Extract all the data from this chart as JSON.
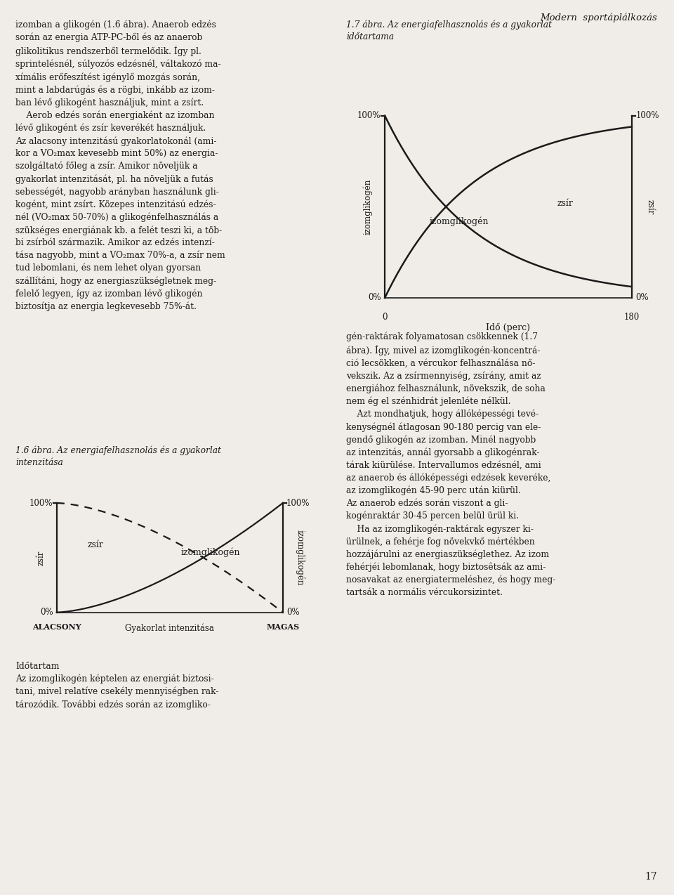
{
  "page_title": "Modern  sportáplálkozás",
  "page_number": "17",
  "background_color": "#f0ede8",
  "line_color": "#1a1a1a",
  "text_color": "#1a1a1a",
  "left_col_text1": "izomban a glikogén (1.6 ábra). Anaerob edzés\nsorán az energia ATP-PC-ből és az anaerob\nglikolitikus rendszerből termelődik. Így pl.\nsprintelésnél, súlyozós edzésnél, váltakozó ma-\nxímális erőfeszítést igénylő mozgás során,\nmint a labdarúgás és a rögbi, inkább az izom-\nban lévő glikogént használjuk, mint a zsírt.\n    Aerob edzés során energiaként az izomban\nlévő glikogént és zsír keverékét használjuk.\nAz alacsony intenzitású gyakorlatokonál (ami-\nkor a VO₂max kevesebb mint 50%) az energia-\nszolgáltató főleg a zsír. Amikor növeljük a\ngyakorlat intenzitását, pl. ha növeljük a futás\nsebességét, nagyobb arányban használunk gli-\nkogént, mint zsírt. Közepes intenzitású edzés-\nnél (VO₂max 50-70%) a glikogénfelhasználás a\nszükséges energiának kb. a felét teszi ki, a töb-\nbi zsírból származik. Amikor az edzés intenzí-\ntása nagyobb, mint a VO₂max 70%-a, a zsír nem\ntud lebomlani, és nem lehet olyan gyorsan\nszállítáni, hogy az energiaszükségletnek meg-\nfelelő legyen, így az izomban lévő glikogén\nbiztosítja az energia legkevesebb 75%-át.",
  "caption1": "1.6 ábra. Az energiafelhasznolás és a gyakorlat\nintenzitása",
  "caption1_bottom": "Időtartam\nAz izomglikogén képtelen az energiát biztosi-\ntani, mivel relatíve csekély mennyiségben rak-\ntározódik. További edzés során az izomgliko-",
  "caption2": "1.7 ábra. Az energiafelhasznolás és a gyakorlat\nidőtartama",
  "right_col_text": "gén-raktárak folyamatosan csökkennek (1.7\nábra). Így, mivel az izomglikogén-koncentrá-\nció lecsökken, a vércukor felhasználása nő-\nvekszik. Az a zsírmennyiség, zsírány, amit az\nenergiához felhasználunk, növekszik, de soha\nnem ég el szénhidrát jelenléte nélkül.\n    Azt mondhatjuk, hogy állóképességi tevé-\nkenységnél átlagosan 90-180 percig van ele-\ngendő glikogén az izomban. Minél nagyobb\naz intenzitás, annál gyorsabb a glikogénrak-\ntárak kiürülése. Intervallumos edzésnél, ami\naz anaerob és állóképességi edzések keveréke,\naz izomglikogén 45-90 perc után kiürül.\nAz anaerob edzés során viszont a gli-\nkogénraktár 30-45 percen belül ürül ki.\n    Ha az izomglikogén-raktárak egyszer ki-\nürülnek, a fehérje fog növekvkő mértékben\nhozzájárulni az energiaszükséglethez. Az izom\nfehérjéi lebomlanak, hogy biztosêtsák az ami-\nnosavakat az energiatermeléshez, és hogy meg-\ntartsák a normális vércukorsizintet.",
  "fig1_label_zsir": "zsír",
  "fig1_label_izomglikogen": "izomglikogén",
  "fig1_xlabel": "Gyakorlat intenzitása",
  "fig1_xlabel_left": "ALACSONY",
  "fig1_xlabel_right": "MAGAS",
  "fig1_ylabel_left": "zsír",
  "fig1_ylabel_right": "izomglikogén",
  "fig2_label_izomglikogen": "izomglikogén",
  "fig2_label_zsir": "zsír",
  "fig2_xlabel": "Idő (perc)",
  "fig2_xtick_0": "0",
  "fig2_xtick_180": "180",
  "fig2_ylabel_left": "izomglikogén",
  "fig2_ylabel_right": "zsír"
}
